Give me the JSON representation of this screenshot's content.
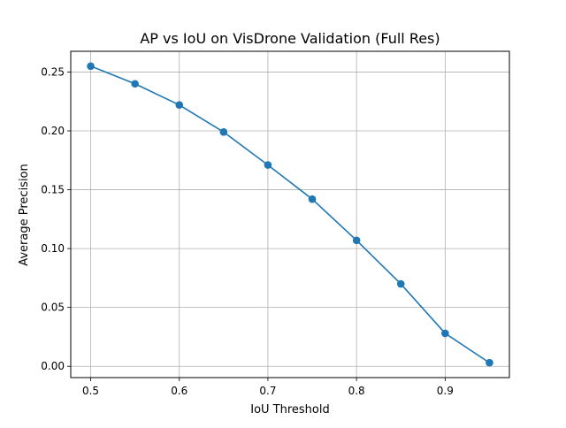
{
  "chart_data": {
    "type": "line",
    "title": "AP vs IoU on VisDrone Validation (Full Res)",
    "xlabel": "IoU Threshold",
    "ylabel": "Average Precision",
    "x": [
      0.5,
      0.55,
      0.6,
      0.65,
      0.7,
      0.75,
      0.8,
      0.85,
      0.9,
      0.95
    ],
    "series": [
      {
        "values": [
          0.255,
          0.24,
          0.222,
          0.199,
          0.171,
          0.142,
          0.107,
          0.07,
          0.028,
          0.003
        ],
        "color": "#1f77b4",
        "marker": "circle"
      }
    ],
    "xlim": [
      0.4775,
      0.9725
    ],
    "ylim": [
      -0.0096,
      0.2676
    ],
    "xticks": [
      0.5,
      0.6,
      0.7,
      0.8,
      0.9
    ],
    "xtick_labels": [
      "0.5",
      "0.6",
      "0.7",
      "0.8",
      "0.9"
    ],
    "yticks": [
      0.0,
      0.05,
      0.1,
      0.15,
      0.2,
      0.25
    ],
    "ytick_labels": [
      "0.00",
      "0.05",
      "0.10",
      "0.15",
      "0.20",
      "0.25"
    ],
    "grid": true,
    "grid_color": "#b0b0b0"
  }
}
